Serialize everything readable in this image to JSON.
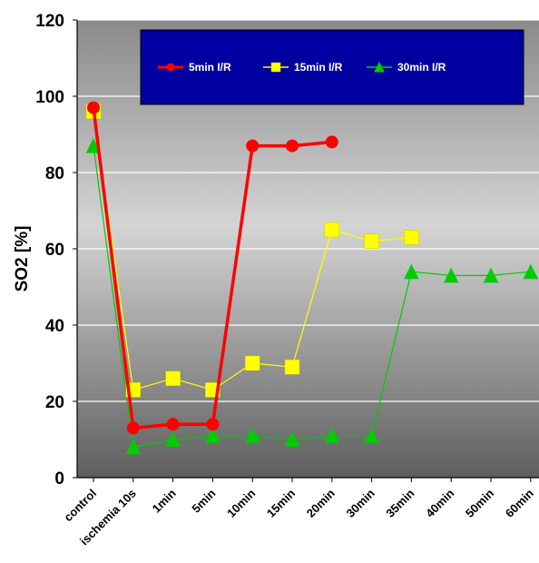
{
  "chart_data": {
    "type": "line",
    "title": "",
    "xlabel": "",
    "ylabel": "SO2 [%]",
    "ylim": [
      0,
      120
    ],
    "yticks": [
      0,
      20,
      40,
      60,
      80,
      100,
      120
    ],
    "grid": true,
    "legend_position": "top",
    "categories": [
      "control",
      "ischemia 10s",
      "1min",
      "5min",
      "10min",
      "15min",
      "20min",
      "30min",
      "35min",
      "40min",
      "50min",
      "60min"
    ],
    "series": [
      {
        "name": "5min I/R",
        "color": "#ff0000",
        "marker": "circle",
        "values": [
          97,
          13,
          14,
          14,
          87,
          87,
          88,
          null,
          null,
          null,
          null,
          null
        ]
      },
      {
        "name": "15min I/R",
        "color": "#ffff00",
        "marker": "square",
        "values": [
          96,
          23,
          26,
          23,
          30,
          29,
          65,
          62,
          63,
          null,
          null,
          null
        ]
      },
      {
        "name": "30min I/R",
        "color": "#00cc00",
        "marker": "triangle",
        "values": [
          87,
          8,
          10,
          11,
          11,
          10,
          11,
          11,
          54,
          53,
          53,
          54
        ]
      }
    ]
  }
}
